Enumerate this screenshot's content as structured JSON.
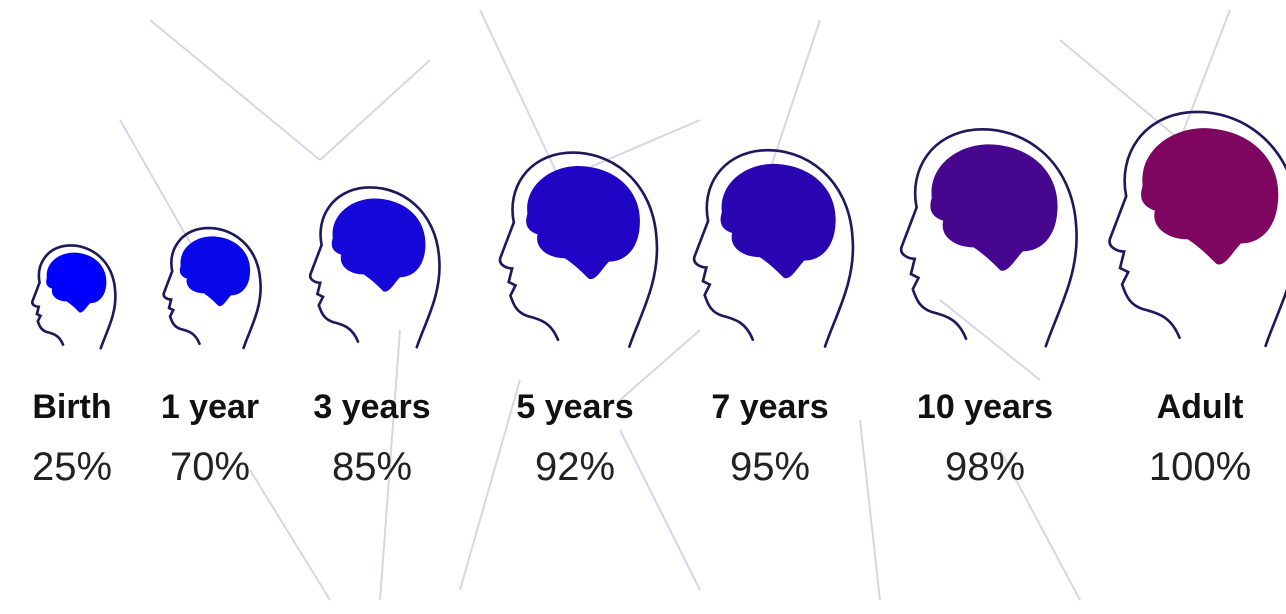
{
  "stages": [
    {
      "label": "Birth",
      "percent": "25%"
    },
    {
      "label": "1 year",
      "percent": "70%"
    },
    {
      "label": "3 years",
      "percent": "85%"
    },
    {
      "label": "5 years",
      "percent": "92%"
    },
    {
      "label": "7 years",
      "percent": "95%"
    },
    {
      "label": "10 years",
      "percent": "98%"
    },
    {
      "label": "Adult",
      "percent": "100%"
    }
  ]
}
